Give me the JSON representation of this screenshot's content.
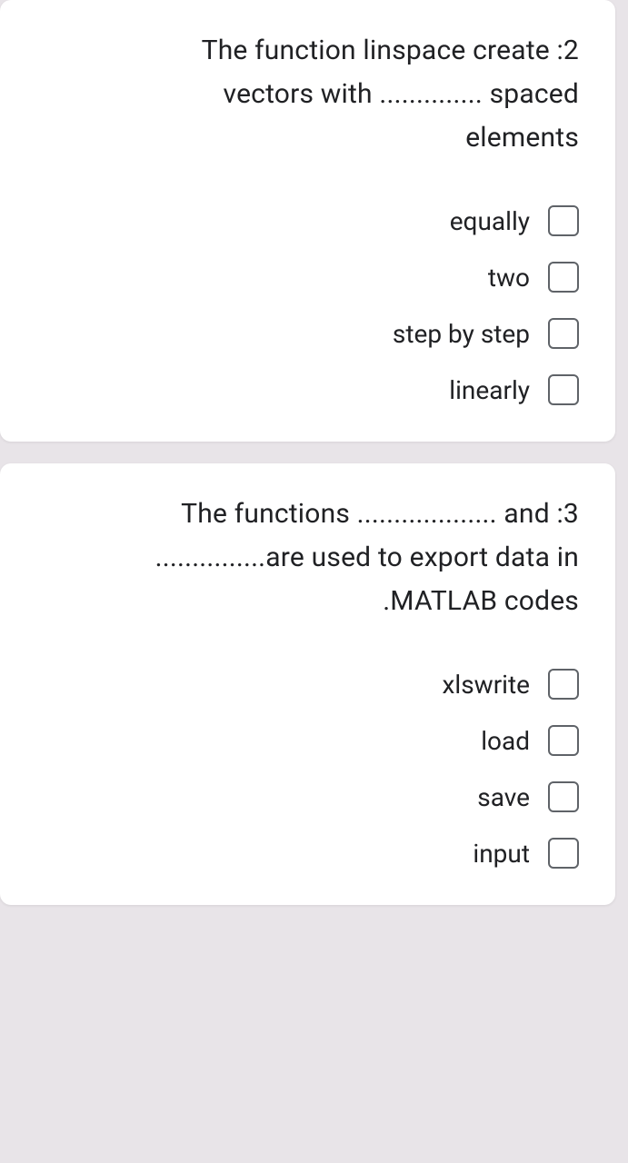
{
  "questions": [
    {
      "number_prefix": ":2",
      "text_line1": "The function linspace create :2",
      "text_line2": "vectors with .............. spaced",
      "text_line3": "elements",
      "options": [
        {
          "label": "equally"
        },
        {
          "label": "two"
        },
        {
          "label": "step by step"
        },
        {
          "label": "linearly"
        }
      ]
    },
    {
      "number_prefix": ":3",
      "text_line1": "The functions ................... and :3",
      "text_line2": "...............are used to export data in",
      "text_line3": ".MATLAB codes",
      "options": [
        {
          "label": "xlswrite"
        },
        {
          "label": "load"
        },
        {
          "label": "save"
        },
        {
          "label": "input"
        }
      ]
    }
  ],
  "colors": {
    "background": "#e8e4e8",
    "card_bg": "#ffffff",
    "text": "#202124",
    "checkbox_border": "#5f6368"
  }
}
